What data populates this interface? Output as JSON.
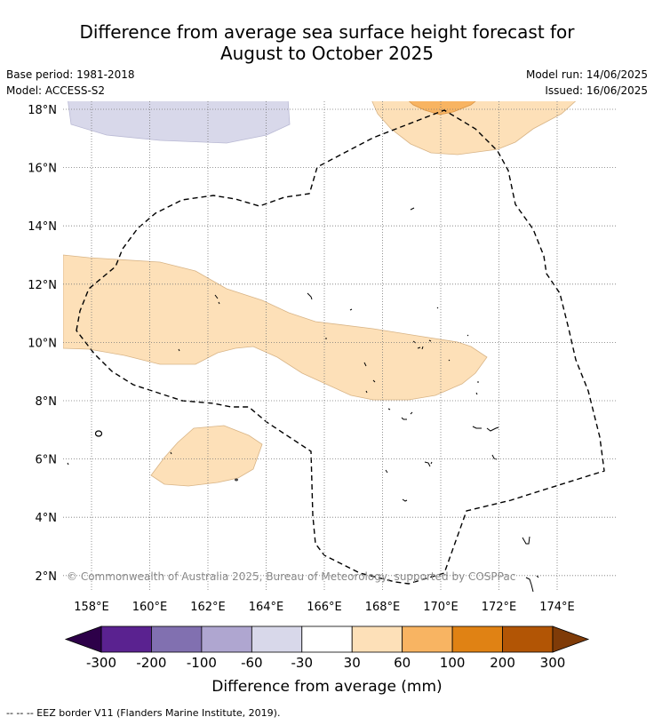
{
  "title_line1": "Difference from average sea surface height forecast for",
  "title_line2": "August to October 2025",
  "base_period": "Base period: 1981-2018",
  "model": "Model: ACCESS-S2",
  "model_run": "Model run: 14/06/2025",
  "issued": "Issued: 16/06/2025",
  "copyright": "© Commonwealth of Australia 2025, Bureau of Meteorology, supported by COSPPac",
  "footnote": "--  --  -- EEZ border V11 (Flanders Marine Institute, 2019).",
  "map": {
    "lat_ticks": [
      "18°N",
      "16°N",
      "14°N",
      "12°N",
      "10°N",
      "8°N",
      "6°N",
      "4°N",
      "2°N"
    ],
    "lon_ticks": [
      "158°E",
      "160°E",
      "162°E",
      "164°E",
      "166°E",
      "168°E",
      "170°E",
      "172°E",
      "174°E"
    ],
    "lon_range": [
      157.0,
      176.0
    ],
    "lat_range": [
      1.5,
      18.3
    ]
  },
  "colorbar": {
    "title": "Difference from average (mm)",
    "tick_labels": [
      "-300",
      "-200",
      "-100",
      "-60",
      "-30",
      "30",
      "60",
      "100",
      "200",
      "300"
    ],
    "colors": {
      "below_min": "#2d0049",
      "bins": [
        "#5a2290",
        "#8170b0",
        "#afa6d0",
        "#d8d8ea",
        "#ffffff",
        "#fde0b8",
        "#f8b462",
        "#e08214",
        "#b25505"
      ],
      "above_max": "#7f3b08"
    }
  },
  "legend_colors": {
    "neg_30_60": "#d8d8ea",
    "pos_30_60": "#fde0b8",
    "pos_60_100": "#f8b462"
  }
}
